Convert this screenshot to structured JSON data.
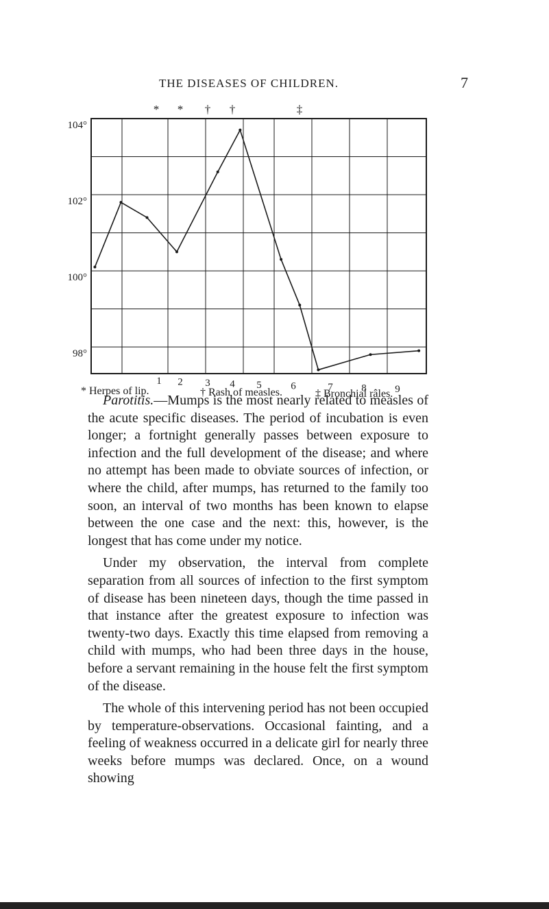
{
  "header": {
    "title": "THE DISEASES OF CHILDREN.",
    "page_number": "7"
  },
  "chart_data": {
    "type": "line",
    "x": [
      0.1,
      0.8,
      1.5,
      2.3,
      3.4,
      4.0,
      5.1,
      5.6,
      6.1,
      7.5,
      8.8
    ],
    "values": [
      100.1,
      101.8,
      101.4,
      100.5,
      102.6,
      103.7,
      100.3,
      99.1,
      97.4,
      97.8,
      97.9
    ],
    "color": "#1a1a1a",
    "xlim": [
      0,
      9
    ],
    "ylim": [
      97.3,
      104
    ],
    "yticks": [
      {
        "value": 104,
        "label": "104°"
      },
      {
        "value": 102,
        "label": "102°"
      },
      {
        "value": 100,
        "label": "100°"
      },
      {
        "value": 98,
        "label": "98°"
      }
    ],
    "grid": true,
    "day_labels": [
      "1",
      "2",
      "3",
      "4",
      "5",
      "6",
      "7",
      "8",
      "9"
    ],
    "top_markers": [
      "*",
      "*",
      "†",
      "†",
      "‡"
    ],
    "legend": [
      "* Herpes of lip.",
      "† Rash of measles.",
      "‡ Bronchial râles."
    ]
  },
  "paragraphs": [
    {
      "lead": "Parotitis.",
      "text": "—Mumps is the most nearly related to measles of the acute specific diseases. The period of incubation is even longer; a fortnight generally passes between exposure to infection and the full development of the disease; and where no attempt has been made to obviate sources of infection, or where the child, after mumps, has returned to the family too soon, an interval of two months has been known to elapse between the one case and the next: this, however, is the longest that has come under my notice."
    },
    {
      "text": "Under my observation, the interval from complete separation from all sources of infection to the first symptom of disease has been nineteen days, though the time passed in that instance after the greatest exposure to infection was twenty-two days. Exactly this time elapsed from removing a child with mumps, who had been three days in the house, before a servant remaining in the house felt the first symptom of the disease."
    },
    {
      "text": "The whole of this intervening period has not been occupied by temperature-observations. Occasional fainting, and a feeling of weakness occurred in a delicate girl for nearly three weeks before mumps was declared. Once, on a wound showing"
    }
  ]
}
